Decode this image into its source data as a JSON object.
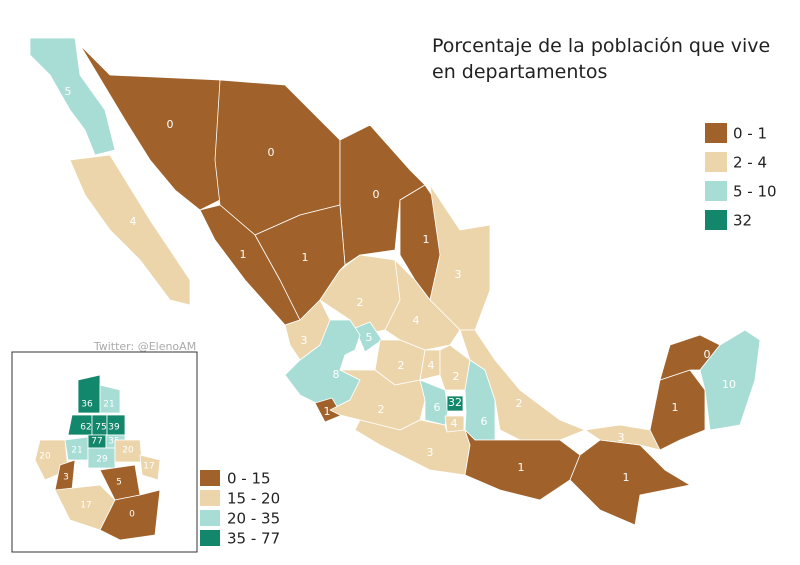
{
  "title": "Porcentaje de la población que vive en departamentos",
  "credit": "Twitter: @ElenoAM",
  "legend": [
    {
      "label": "0 - 1",
      "color": "#a0622a"
    },
    {
      "label": "2 - 4",
      "color": "#ecd5aa"
    },
    {
      "label": "5 - 10",
      "color": "#a8ddd6"
    },
    {
      "label": "32",
      "color": "#13876b"
    }
  ],
  "regions": [
    {
      "label": "5",
      "color": "#a8ddd6"
    },
    {
      "label": "4",
      "color": "#ecd5aa"
    },
    {
      "label": "0",
      "color": "#a0622a"
    },
    {
      "label": "0",
      "color": "#a0622a"
    },
    {
      "label": "0",
      "color": "#a0622a"
    },
    {
      "label": "1",
      "color": "#a0622a"
    },
    {
      "label": "3",
      "color": "#ecd5aa"
    },
    {
      "label": "1",
      "color": "#a0622a"
    },
    {
      "label": "1",
      "color": "#a0622a"
    },
    {
      "label": "2",
      "color": "#ecd5aa"
    },
    {
      "label": "4",
      "color": "#ecd5aa"
    },
    {
      "label": "3",
      "color": "#ecd5aa"
    },
    {
      "label": "5",
      "color": "#a8ddd6"
    },
    {
      "label": "8",
      "color": "#a8ddd6"
    },
    {
      "label": "2",
      "color": "#ecd5aa"
    },
    {
      "label": "4",
      "color": "#ecd5aa"
    },
    {
      "label": "2",
      "color": "#ecd5aa"
    },
    {
      "label": "1",
      "color": "#a0622a"
    },
    {
      "label": "2",
      "color": "#ecd5aa"
    },
    {
      "label": "6",
      "color": "#a8ddd6"
    },
    {
      "label": "32",
      "color": "#13876b"
    },
    {
      "label": "4",
      "color": "#ecd5aa"
    },
    {
      "label": "3",
      "color": "#ecd5aa"
    },
    {
      "label": "6",
      "color": "#a8ddd6"
    },
    {
      "label": "2",
      "color": "#ecd5aa"
    },
    {
      "label": "3",
      "color": "#ecd5aa"
    },
    {
      "label": "1",
      "color": "#a0622a"
    },
    {
      "label": "1",
      "color": "#a0622a"
    },
    {
      "label": "3",
      "color": "#ecd5aa"
    },
    {
      "label": "1",
      "color": "#a0622a"
    },
    {
      "label": "0",
      "color": "#a0622a"
    },
    {
      "label": "10",
      "color": "#a8ddd6"
    }
  ],
  "inset": {
    "legend": [
      {
        "label": "0 - 15",
        "color": "#a0622a"
      },
      {
        "label": "15 - 20",
        "color": "#ecd5aa"
      },
      {
        "label": "20 - 35",
        "color": "#a8ddd6"
      },
      {
        "label": "35 - 77",
        "color": "#13876b"
      }
    ],
    "regions": [
      {
        "label": "36",
        "color": "#13876b"
      },
      {
        "label": "21",
        "color": "#a8ddd6"
      },
      {
        "label": "62",
        "color": "#13876b"
      },
      {
        "label": "75",
        "color": "#13876b"
      },
      {
        "label": "39",
        "color": "#13876b"
      },
      {
        "label": "77",
        "color": "#13876b"
      },
      {
        "label": "35",
        "color": "#a8ddd6"
      },
      {
        "label": "21",
        "color": "#a8ddd6"
      },
      {
        "label": "29",
        "color": "#a8ddd6"
      },
      {
        "label": "20",
        "color": "#ecd5aa"
      },
      {
        "label": "20",
        "color": "#ecd5aa"
      },
      {
        "label": "17",
        "color": "#ecd5aa"
      },
      {
        "label": "3",
        "color": "#a0622a"
      },
      {
        "label": "5",
        "color": "#a0622a"
      },
      {
        "label": "17",
        "color": "#ecd5aa"
      },
      {
        "label": "0",
        "color": "#a0622a"
      }
    ]
  }
}
